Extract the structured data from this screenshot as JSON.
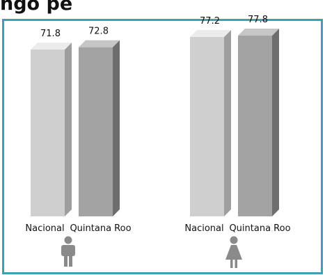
{
  "title_fragment": "ngo          pe",
  "colors": {
    "frame": "#3e9fb8",
    "nacional_front": "#cfcfcf",
    "nacional_side": "#9e9e9e",
    "nacional_top": "#ececec",
    "qroo_front": "#a3a3a3",
    "qroo_side": "#6e6e6e",
    "qroo_top": "#c6c6c6",
    "icon": "#8a8a8a"
  },
  "chart_data": {
    "type": "bar",
    "title": "",
    "xlabel": "",
    "ylabel": "",
    "categories": [
      "Nacional",
      "Quintana Roo"
    ],
    "groups": [
      {
        "icon": "male-icon",
        "values": [
          71.8,
          72.8
        ]
      },
      {
        "icon": "female-icon",
        "values": [
          77.2,
          77.8
        ]
      }
    ],
    "grid": false
  }
}
